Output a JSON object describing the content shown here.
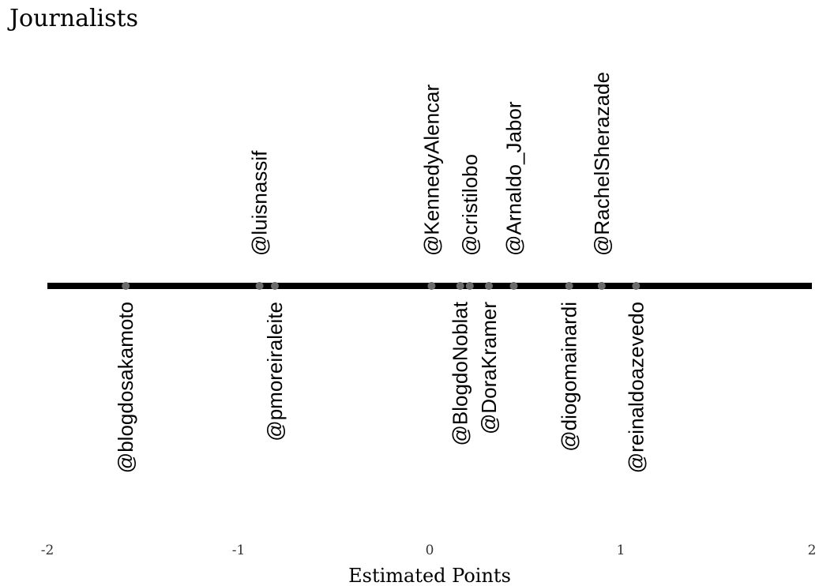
{
  "chart_data": {
    "type": "scatter",
    "title": "Journalists",
    "xlabel": "Estimated Points",
    "xlim": [
      -2,
      2
    ],
    "xticks": [
      "-2",
      "-1",
      "0",
      "1",
      "2"
    ],
    "grid": false,
    "points": [
      {
        "label": "@blogdosakamoto",
        "x": -1.59,
        "side": "below"
      },
      {
        "label": "@luisnassif",
        "x": -0.89,
        "side": "above"
      },
      {
        "label": "@pmoreiraleite",
        "x": -0.81,
        "side": "below"
      },
      {
        "label": "@KennedyAlencar",
        "x": 0.01,
        "side": "above"
      },
      {
        "label": "@BlogdoNoblat",
        "x": 0.16,
        "side": "below"
      },
      {
        "label": "@cristilobo",
        "x": 0.21,
        "side": "above"
      },
      {
        "label": "@DoraKramer",
        "x": 0.31,
        "side": "below"
      },
      {
        "label": "@Arnaldo_Jabor",
        "x": 0.44,
        "side": "above"
      },
      {
        "label": "@diogomainardi",
        "x": 0.73,
        "side": "below"
      },
      {
        "label": "@RachelSherazade",
        "x": 0.9,
        "side": "above"
      },
      {
        "label": "@reinaldoazevedo",
        "x": 1.08,
        "side": "below"
      }
    ],
    "colors": {
      "line": "#000000",
      "point": "#6b6b6b",
      "text": "#000000"
    }
  }
}
